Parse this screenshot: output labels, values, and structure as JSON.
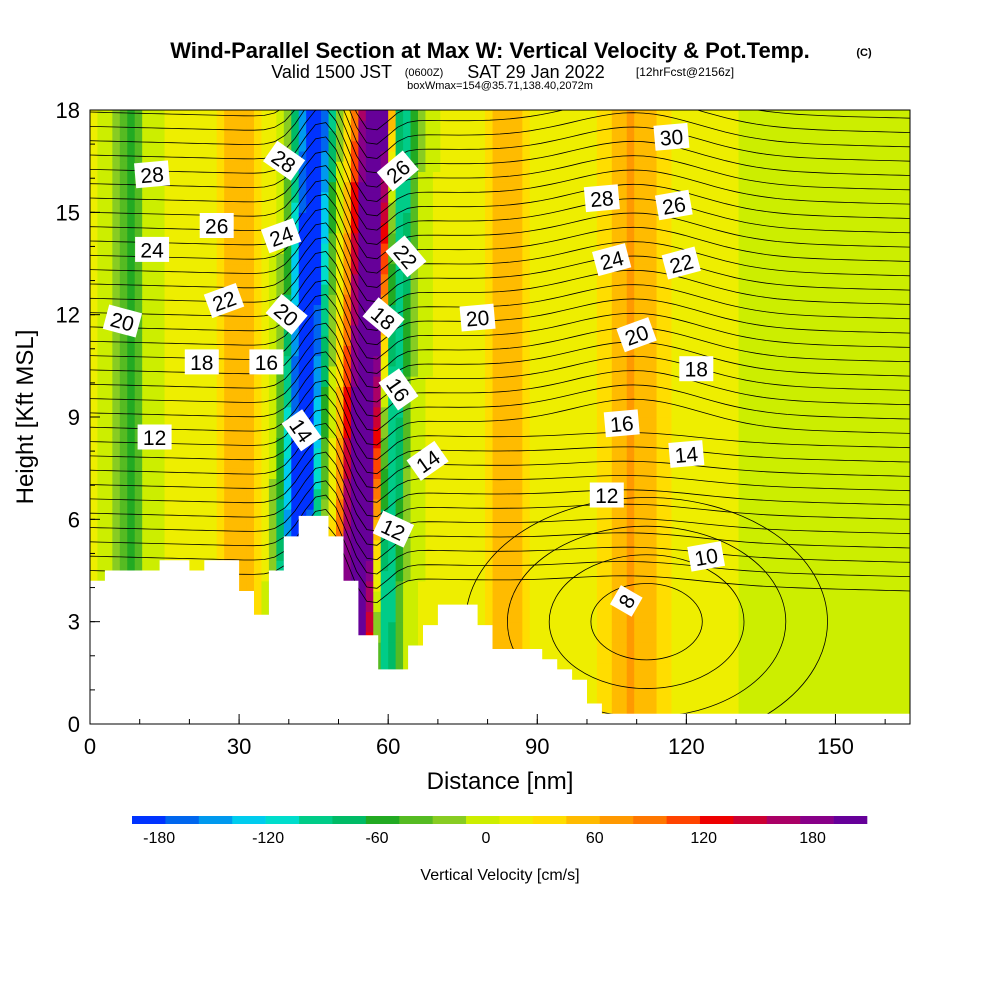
{
  "header": {
    "title": "Wind-Parallel Section at Max W: Vertical Velocity & Pot.Temp.",
    "title_mark": "(C)",
    "subtitle_main": "Valid 1500 JST",
    "subtitle_zulu": "(0600Z)",
    "subtitle_date": "SAT 29 Jan 2022",
    "subtitle_fcst": "[12hrFcst@2156z]",
    "box_info": "boxWmax=154@35.71,138.40,2072m"
  },
  "chart_data": {
    "type": "heatmap",
    "xlabel": "Distance [nm]",
    "ylabel": "Height [Kft MSL]",
    "xlim": [
      0,
      165
    ],
    "ylim": [
      0,
      18
    ],
    "x_ticks": [
      0,
      30,
      60,
      90,
      120,
      150
    ],
    "y_ticks": [
      0,
      3,
      6,
      9,
      12,
      15,
      18
    ],
    "colorbar": {
      "label": "Vertical Velocity [cm/s]",
      "ticks": [
        -180,
        -120,
        -60,
        0,
        60,
        120,
        180
      ],
      "min": -195,
      "max": 210,
      "colors": [
        "#0033ff",
        "#0066ee",
        "#0099ee",
        "#00ccee",
        "#00ddcc",
        "#00cc88",
        "#00bb66",
        "#22aa22",
        "#55bb22",
        "#88cc22",
        "#ccee00",
        "#eeee00",
        "#ffdd00",
        "#ffbb00",
        "#ff9900",
        "#ff7700",
        "#ff4400",
        "#ee0000",
        "#cc0033",
        "#aa0066",
        "#880088",
        "#660099"
      ]
    },
    "terrain": [
      [
        0,
        4.2
      ],
      [
        3,
        4.2
      ],
      [
        3,
        4.5
      ],
      [
        14,
        4.5
      ],
      [
        14,
        4.8
      ],
      [
        20,
        4.8
      ],
      [
        20,
        4.5
      ],
      [
        23,
        4.5
      ],
      [
        23,
        4.8
      ],
      [
        30,
        4.8
      ],
      [
        30,
        3.9
      ],
      [
        33,
        3.9
      ],
      [
        33,
        3.2
      ],
      [
        36,
        3.2
      ],
      [
        36,
        4.5
      ],
      [
        39,
        4.5
      ],
      [
        39,
        5.5
      ],
      [
        42,
        5.5
      ],
      [
        42,
        6.1
      ],
      [
        48,
        6.1
      ],
      [
        48,
        5.5
      ],
      [
        51,
        5.5
      ],
      [
        51,
        4.2
      ],
      [
        54,
        4.2
      ],
      [
        54,
        2.6
      ],
      [
        58,
        2.6
      ],
      [
        58,
        1.6
      ],
      [
        64,
        1.6
      ],
      [
        64,
        2.3
      ],
      [
        67,
        2.3
      ],
      [
        67,
        2.9
      ],
      [
        70,
        2.9
      ],
      [
        70,
        3.5
      ],
      [
        78,
        3.5
      ],
      [
        78,
        2.9
      ],
      [
        81,
        2.9
      ],
      [
        81,
        2.2
      ],
      [
        91,
        2.2
      ],
      [
        91,
        1.9
      ],
      [
        94,
        1.9
      ],
      [
        94,
        1.6
      ],
      [
        97,
        1.6
      ],
      [
        97,
        1.3
      ],
      [
        100,
        1.3
      ],
      [
        100,
        0.6
      ],
      [
        103,
        0.6
      ],
      [
        103,
        0.3
      ],
      [
        165,
        0.3
      ]
    ],
    "velocity_bands": [
      {
        "center": 30,
        "width": 4,
        "value": 55
      },
      {
        "center": 44,
        "width": 3.2,
        "value": -180
      },
      {
        "center": 41,
        "width": 3,
        "value": -100
      },
      {
        "center": 54,
        "width": 3.2,
        "value": 200
      },
      {
        "center": 57,
        "width": 2,
        "value": 140
      },
      {
        "center": 61,
        "width": 3,
        "value": -110
      },
      {
        "center": 84,
        "width": 4,
        "value": 50
      },
      {
        "center": 109,
        "width": 7,
        "value": 55
      },
      {
        "center": 8,
        "width": 3,
        "value": -60
      }
    ],
    "theta_contour_labels": [
      {
        "label": "28",
        "x": 12.5,
        "y": 16.1,
        "angle": -5
      },
      {
        "label": "26",
        "x": 25.5,
        "y": 14.6,
        "angle": 0
      },
      {
        "label": "24",
        "x": 12.5,
        "y": 13.9,
        "angle": 0
      },
      {
        "label": "22",
        "x": 27,
        "y": 12.4,
        "angle": -20
      },
      {
        "label": "20",
        "x": 6.5,
        "y": 11.8,
        "angle": 15
      },
      {
        "label": "18",
        "x": 22.5,
        "y": 10.6,
        "angle": 0
      },
      {
        "label": "16",
        "x": 35.5,
        "y": 10.6,
        "angle": 0
      },
      {
        "label": "12",
        "x": 13,
        "y": 8.4,
        "angle": 0
      },
      {
        "label": "28",
        "x": 39,
        "y": 16.5,
        "angle": 35
      },
      {
        "label": "24",
        "x": 38.5,
        "y": 14.3,
        "angle": -20
      },
      {
        "label": "20",
        "x": 39.5,
        "y": 12.0,
        "angle": 40
      },
      {
        "label": "14",
        "x": 42.5,
        "y": 8.6,
        "angle": 55
      },
      {
        "label": "26",
        "x": 62,
        "y": 16.2,
        "angle": -40
      },
      {
        "label": "22",
        "x": 63.5,
        "y": 13.7,
        "angle": 50
      },
      {
        "label": "18",
        "x": 59,
        "y": 11.9,
        "angle": 40
      },
      {
        "label": "16",
        "x": 62,
        "y": 9.8,
        "angle": 55
      },
      {
        "label": "14",
        "x": 68,
        "y": 7.7,
        "angle": -35
      },
      {
        "label": "12",
        "x": 61,
        "y": 5.7,
        "angle": 25
      },
      {
        "label": "20",
        "x": 78,
        "y": 11.9,
        "angle": -5
      },
      {
        "label": "30",
        "x": 117,
        "y": 17.2,
        "angle": -5
      },
      {
        "label": "28",
        "x": 103,
        "y": 15.4,
        "angle": -5
      },
      {
        "label": "26",
        "x": 117.5,
        "y": 15.2,
        "angle": -10
      },
      {
        "label": "24",
        "x": 105,
        "y": 13.6,
        "angle": -15
      },
      {
        "label": "22",
        "x": 119,
        "y": 13.5,
        "angle": -15
      },
      {
        "label": "20",
        "x": 110,
        "y": 11.4,
        "angle": -20
      },
      {
        "label": "18",
        "x": 122,
        "y": 10.4,
        "angle": 0
      },
      {
        "label": "16",
        "x": 107,
        "y": 8.8,
        "angle": -5
      },
      {
        "label": "14",
        "x": 120,
        "y": 7.9,
        "angle": -5
      },
      {
        "label": "12",
        "x": 104,
        "y": 6.7,
        "angle": 0
      },
      {
        "label": "10",
        "x": 124,
        "y": 4.9,
        "angle": -10
      },
      {
        "label": "8",
        "x": 108,
        "y": 3.6,
        "angle": -60
      }
    ]
  }
}
